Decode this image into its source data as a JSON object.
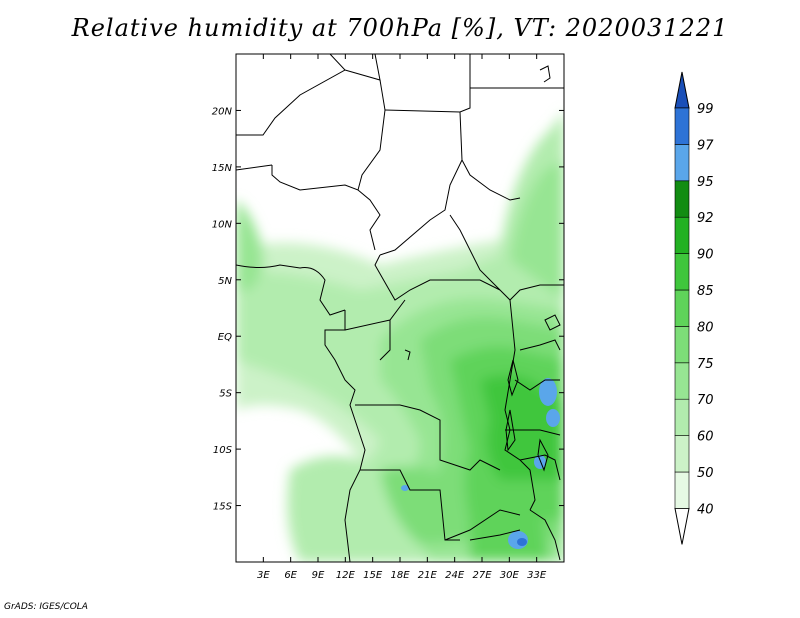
{
  "title": "Relative humidity at 700hPa [%], VT: 2020031221",
  "credit": "GrADS: IGES/COLA",
  "map": {
    "lon_range": [
      0,
      36
    ],
    "lat_range": [
      -20,
      25
    ],
    "x_ticks": [
      {
        "value": 3,
        "label": "3E"
      },
      {
        "value": 6,
        "label": "6E"
      },
      {
        "value": 9,
        "label": "9E"
      },
      {
        "value": 12,
        "label": "12E"
      },
      {
        "value": 15,
        "label": "15E"
      },
      {
        "value": 18,
        "label": "18E"
      },
      {
        "value": 21,
        "label": "21E"
      },
      {
        "value": 24,
        "label": "24E"
      },
      {
        "value": 27,
        "label": "27E"
      },
      {
        "value": 30,
        "label": "30E"
      },
      {
        "value": 33,
        "label": "33E"
      }
    ],
    "y_ticks": [
      {
        "value": 20,
        "label": "20N"
      },
      {
        "value": 15,
        "label": "15N"
      },
      {
        "value": 10,
        "label": "10N"
      },
      {
        "value": 5,
        "label": "5N"
      },
      {
        "value": 0,
        "label": "EQ"
      },
      {
        "value": -5,
        "label": "5S"
      },
      {
        "value": -10,
        "label": "10S"
      },
      {
        "value": -15,
        "label": "15S"
      }
    ]
  },
  "colorbar": {
    "levels": [
      "40",
      "50",
      "60",
      "70",
      "75",
      "80",
      "85",
      "90",
      "92",
      "95",
      "97",
      "99"
    ],
    "colors": [
      "#ffffff",
      "#e6f9e4",
      "#ccf2c8",
      "#b2ecae",
      "#97e593",
      "#7ddd78",
      "#5fd35a",
      "#3fc63c",
      "#23b123",
      "#128c12",
      "#5aa6ea",
      "#2e73d6",
      "#1a4fb8"
    ]
  }
}
